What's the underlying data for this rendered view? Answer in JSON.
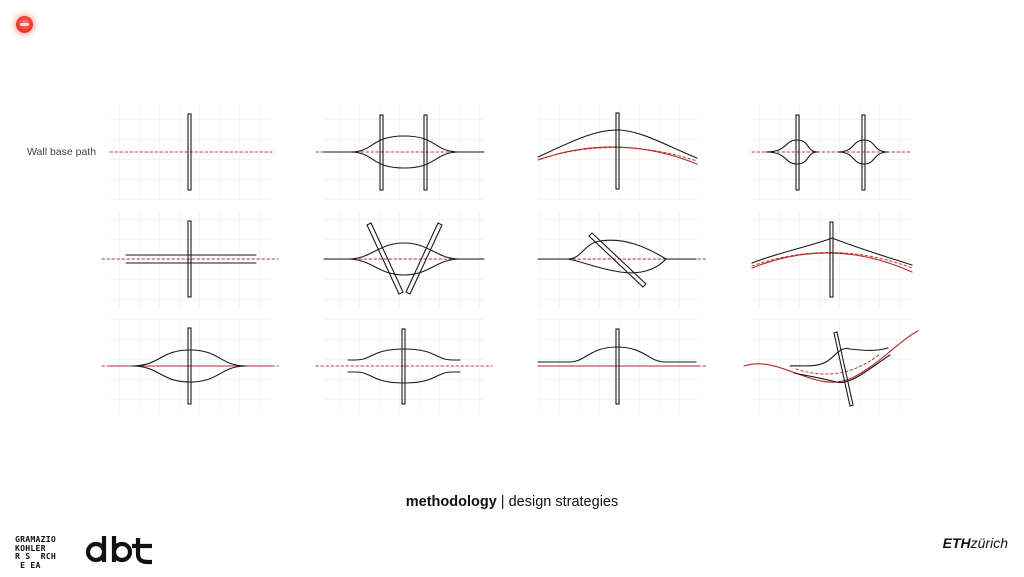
{
  "recording_indicator": "red-record-dot-icon",
  "diagram": {
    "label": "Wall base path",
    "colors": {
      "grid": "#e6e6e6",
      "base_path": "#c03a3a",
      "line": "#1a1a1a"
    },
    "layout": "3 rows x 4 columns of wall design strategy diagrams"
  },
  "caption": {
    "bold": "methodology",
    "rest": " | design strategies"
  },
  "footer": {
    "gramazio_logo": [
      "GRAMAZIO",
      "KOHLER",
      "R S  RCH",
      " E EA"
    ],
    "dbt_logo": "dbt",
    "eth_logo_bold": "ETH",
    "eth_logo_italic": "zürich"
  }
}
